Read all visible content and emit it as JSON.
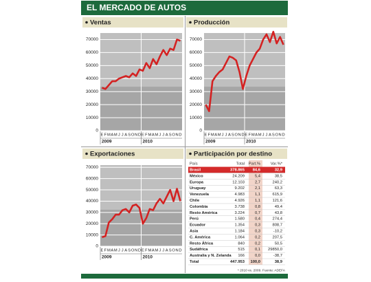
{
  "header": {
    "title": "EL MERCADO DE AUTOS"
  },
  "chart_data": [
    {
      "type": "line",
      "title": "Ventas",
      "categories": [
        "E",
        "F",
        "M",
        "A",
        "M",
        "J",
        "J",
        "A",
        "S",
        "O",
        "N",
        "D",
        "E",
        "F",
        "M",
        "A",
        "M",
        "J",
        "J",
        "A",
        "S",
        "O",
        "N",
        "D"
      ],
      "x_groups": [
        "2009",
        "2010"
      ],
      "series": [
        {
          "color": "#d42222",
          "values": [
            33000,
            32000,
            35000,
            38000,
            38000,
            40000,
            41000,
            42000,
            41000,
            44000,
            42000,
            47000,
            46000,
            52000,
            48000,
            55000,
            51000,
            57000,
            62000,
            58000,
            63000,
            62000,
            70000,
            69000
          ]
        }
      ],
      "ylim": [
        0,
        75000
      ],
      "yticks": [
        0,
        10000,
        20000,
        30000,
        40000,
        50000,
        60000,
        70000
      ],
      "grid": true
    },
    {
      "type": "line",
      "title": "Producción",
      "categories": [
        "E",
        "F",
        "M",
        "A",
        "M",
        "J",
        "J",
        "A",
        "S",
        "O",
        "N",
        "D",
        "E",
        "F",
        "M",
        "A",
        "M",
        "J",
        "J",
        "A",
        "S",
        "O",
        "N",
        "D"
      ],
      "x_groups": [
        "2009",
        "2010"
      ],
      "series": [
        {
          "color": "#d42222",
          "values": [
            20000,
            15000,
            38000,
            42000,
            45000,
            47000,
            52000,
            57000,
            56000,
            54000,
            45000,
            32000,
            42000,
            50000,
            55000,
            60000,
            63000,
            70000,
            74000,
            68000,
            76000,
            67000,
            72000,
            66000
          ]
        }
      ],
      "ylim": [
        0,
        75000
      ],
      "yticks": [
        0,
        10000,
        20000,
        30000,
        40000,
        50000,
        60000,
        70000
      ],
      "grid": true
    },
    {
      "type": "line",
      "title": "Exportaciones",
      "categories": [
        "E",
        "F",
        "M",
        "A",
        "M",
        "J",
        "J",
        "A",
        "S",
        "O",
        "N",
        "D",
        "E",
        "F",
        "M",
        "A",
        "M",
        "J",
        "J",
        "A",
        "S",
        "O",
        "N",
        "D"
      ],
      "x_groups": [
        "2009",
        "2010"
      ],
      "series": [
        {
          "color": "#d42222",
          "values": [
            8000,
            9000,
            21000,
            24000,
            28000,
            28000,
            32000,
            33000,
            30000,
            36000,
            37000,
            34000,
            20000,
            25000,
            33000,
            32000,
            38000,
            42000,
            38000,
            44000,
            50000,
            40000,
            51000,
            40000
          ]
        }
      ],
      "ylim": [
        0,
        72000
      ],
      "yticks": [
        0,
        10000,
        20000,
        30000,
        40000,
        50000,
        60000,
        70000
      ],
      "grid": true
    }
  ],
  "table": {
    "title": "Participación por destino",
    "columns": [
      "País",
      "Total",
      "Part.%",
      "Var.%*"
    ],
    "rows": [
      [
        "Brasil",
        "378.865",
        "84,6",
        "32,9"
      ],
      [
        "México",
        "24.209",
        "5,4",
        "38,5"
      ],
      [
        "Europa",
        "12.103",
        "2,7",
        "240,2"
      ],
      [
        "Uruguay",
        "9.202",
        "2,1",
        "63,3"
      ],
      [
        "Venezuela",
        "4.983",
        "1,1",
        "615,9"
      ],
      [
        "Chile",
        "4.926",
        "1,1",
        "121,6"
      ],
      [
        "Colombia",
        "3.738",
        "0,8",
        "49,4"
      ],
      [
        "Resto América",
        "3.224",
        "0,7",
        "43,8"
      ],
      [
        "Perú",
        "1.580",
        "0,4",
        "274,4"
      ],
      [
        "Ecuador",
        "1.354",
        "0,3",
        "808,7"
      ],
      [
        "Asia",
        "1.184",
        "0,3",
        "-10,2"
      ],
      [
        "C. América",
        "1.064",
        "0,2",
        "207,5"
      ],
      [
        "Resto África",
        "840",
        "0,2",
        "50,5"
      ],
      [
        "Sudáfrica",
        "515",
        "0,1",
        "29850,0"
      ],
      [
        "Australia y N. Zelanda",
        "166",
        "0,0",
        "-38,7"
      ],
      [
        "Total",
        "447.953",
        "100,0",
        "38,9"
      ]
    ],
    "note": "* 2010 vs. 2009. Fuente: ADEFA"
  }
}
